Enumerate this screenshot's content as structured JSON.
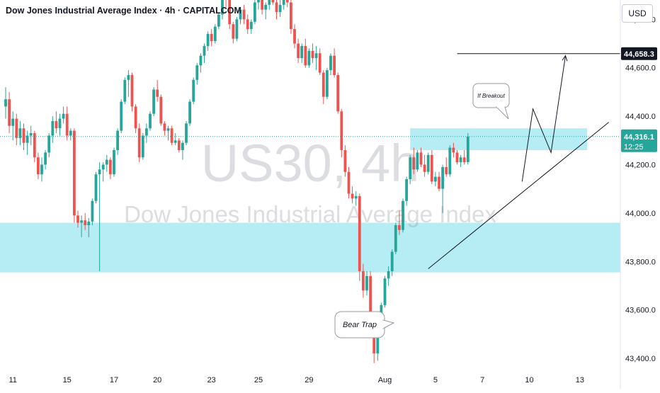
{
  "header": {
    "title": "Dow Jones Industrial Average Index · 4h · CAPITALCOM",
    "currency": "USD"
  },
  "watermark": {
    "symbol": "US30, 4h",
    "name": "Dow Jones Industrial Average Index"
  },
  "colors": {
    "up": "#26a69a",
    "down": "#ef5350",
    "zone": "#b2ebf2",
    "current_price_bg": "#26a69a",
    "target_bg": "#131722",
    "axis_text": "#131722"
  },
  "annotations": {
    "breakout_label": "If Breakout",
    "bear_trap_label": "Bear Trap"
  },
  "price_axis": {
    "current_price": "44,316.1",
    "countdown": "12:25",
    "target_price": "44,658.3"
  },
  "chart_data": {
    "type": "candlestick",
    "title": "Dow Jones Industrial Average Index · 4h · CAPITALCOM",
    "ylim": [
      43365,
      44880
    ],
    "y_ticks": [
      {
        "value": 43400,
        "label": "43,400.0"
      },
      {
        "value": 43600,
        "label": "43,600.0"
      },
      {
        "value": 43800,
        "label": "43,800.0"
      },
      {
        "value": 44000,
        "label": "44,000.0"
      },
      {
        "value": 44200,
        "label": "44,200.0"
      },
      {
        "value": 44400,
        "label": "44,400.0"
      },
      {
        "value": 44600,
        "label": "44,600.0"
      },
      {
        "value": 44800,
        "label": "44,800.0"
      }
    ],
    "x_ticks": [
      {
        "bar": 2,
        "label": "11"
      },
      {
        "bar": 17,
        "label": "15"
      },
      {
        "bar": 30,
        "label": "17"
      },
      {
        "bar": 42,
        "label": "20"
      },
      {
        "bar": 57,
        "label": "23"
      },
      {
        "bar": 70,
        "label": "25"
      },
      {
        "bar": 84,
        "label": "29"
      },
      {
        "bar": 105,
        "label": "Aug"
      },
      {
        "bar": 119,
        "label": "5"
      },
      {
        "bar": 132,
        "label": "7"
      },
      {
        "bar": 145,
        "label": "10"
      },
      {
        "bar": 159,
        "label": "13"
      }
    ],
    "candles": [
      [
        44440,
        44520,
        44390,
        44470
      ],
      [
        44470,
        44500,
        44330,
        44360
      ],
      [
        44360,
        44420,
        44300,
        44390
      ],
      [
        44390,
        44410,
        44280,
        44310
      ],
      [
        44310,
        44380,
        44280,
        44350
      ],
      [
        44350,
        44370,
        44260,
        44290
      ],
      [
        44290,
        44340,
        44240,
        44320
      ],
      [
        44320,
        44360,
        44280,
        44330
      ],
      [
        44330,
        44340,
        44210,
        44230
      ],
      [
        44230,
        44250,
        44140,
        44160
      ],
      [
        44160,
        44230,
        44130,
        44200
      ],
      [
        44200,
        44260,
        44180,
        44250
      ],
      [
        44250,
        44330,
        44230,
        44320
      ],
      [
        44320,
        44400,
        44290,
        44380
      ],
      [
        44380,
        44420,
        44330,
        44350
      ],
      [
        44350,
        44410,
        44320,
        44390
      ],
      [
        44390,
        44440,
        44370,
        44410
      ],
      [
        44410,
        44440,
        44300,
        44320
      ],
      [
        44320,
        44350,
        44300,
        44340
      ],
      [
        44340,
        44350,
        43960,
        43990
      ],
      [
        43990,
        44010,
        43940,
        43960
      ],
      [
        43960,
        43990,
        43900,
        43970
      ],
      [
        43970,
        44000,
        43930,
        43950
      ],
      [
        43950,
        43980,
        43900,
        43965
      ],
      [
        43965,
        44060,
        43950,
        44050
      ],
      [
        44050,
        44170,
        44040,
        44160
      ],
      [
        44160,
        44210,
        43760,
        44180
      ],
      [
        44180,
        44210,
        44130,
        44200
      ],
      [
        44200,
        44240,
        44170,
        44220
      ],
      [
        44220,
        44230,
        44140,
        44160
      ],
      [
        44160,
        44270,
        44150,
        44260
      ],
      [
        44260,
        44350,
        44240,
        44340
      ],
      [
        44340,
        44470,
        44330,
        44460
      ],
      [
        44460,
        44560,
        44450,
        44550
      ],
      [
        44550,
        44590,
        44480,
        44570
      ],
      [
        44570,
        44580,
        44420,
        44440
      ],
      [
        44440,
        44450,
        44330,
        44350
      ],
      [
        44350,
        44370,
        44210,
        44230
      ],
      [
        44230,
        44330,
        44220,
        44320
      ],
      [
        44320,
        44370,
        44290,
        44350
      ],
      [
        44350,
        44420,
        44340,
        44410
      ],
      [
        44410,
        44520,
        44400,
        44510
      ],
      [
        44510,
        44550,
        44460,
        44480
      ],
      [
        44480,
        44490,
        44360,
        44370
      ],
      [
        44370,
        44380,
        44320,
        44340
      ],
      [
        44340,
        44360,
        44300,
        44350
      ],
      [
        44350,
        44360,
        44280,
        44290
      ],
      [
        44290,
        44330,
        44280,
        44300
      ],
      [
        44300,
        44310,
        44250,
        44260
      ],
      [
        44260,
        44300,
        44220,
        44290
      ],
      [
        44290,
        44380,
        44280,
        44370
      ],
      [
        44370,
        44470,
        44360,
        44460
      ],
      [
        44460,
        44560,
        44450,
        44550
      ],
      [
        44550,
        44620,
        44530,
        44610
      ],
      [
        44610,
        44660,
        44580,
        44650
      ],
      [
        44650,
        44700,
        44620,
        44690
      ],
      [
        44690,
        44750,
        44670,
        44740
      ],
      [
        44740,
        44760,
        44690,
        44710
      ],
      [
        44710,
        44780,
        44700,
        44770
      ],
      [
        44770,
        44830,
        44760,
        44820
      ],
      [
        44820,
        44900,
        44800,
        44890
      ],
      [
        44890,
        44910,
        44850,
        44880
      ],
      [
        44880,
        44900,
        44760,
        44780
      ],
      [
        44780,
        44790,
        44700,
        44720
      ],
      [
        44720,
        44810,
        44710,
        44800
      ],
      [
        44800,
        44850,
        44780,
        44840
      ],
      [
        44840,
        44860,
        44780,
        44800
      ],
      [
        44800,
        44820,
        44740,
        44760
      ],
      [
        44760,
        44800,
        44740,
        44790
      ],
      [
        44790,
        44880,
        44780,
        44870
      ],
      [
        44870,
        44910,
        44840,
        44900
      ],
      [
        44900,
        44910,
        44820,
        44840
      ],
      [
        44840,
        44870,
        44800,
        44860
      ],
      [
        44860,
        44910,
        44840,
        44890
      ],
      [
        44890,
        44920,
        44860,
        44870
      ],
      [
        44870,
        44890,
        44800,
        44830
      ],
      [
        44830,
        44880,
        44810,
        44860
      ],
      [
        44860,
        44900,
        44840,
        44880
      ],
      [
        44880,
        44920,
        44850,
        44870
      ],
      [
        44870,
        44880,
        44740,
        44760
      ],
      [
        44760,
        44780,
        44680,
        44700
      ],
      [
        44700,
        44720,
        44620,
        44640
      ],
      [
        44640,
        44700,
        44620,
        44690
      ],
      [
        44690,
        44720,
        44600,
        44610
      ],
      [
        44610,
        44680,
        44600,
        44670
      ],
      [
        44670,
        44700,
        44620,
        44640
      ],
      [
        44640,
        44690,
        44590,
        44660
      ],
      [
        44660,
        44680,
        44570,
        44580
      ],
      [
        44580,
        44590,
        44450,
        44480
      ],
      [
        44480,
        44600,
        44470,
        44590
      ],
      [
        44590,
        44660,
        44570,
        44650
      ],
      [
        44650,
        44680,
        44560,
        44570
      ],
      [
        44570,
        44580,
        44410,
        44420
      ],
      [
        44420,
        44430,
        44230,
        44260
      ],
      [
        44260,
        44280,
        44150,
        44170
      ],
      [
        44170,
        44190,
        44060,
        44080
      ],
      [
        44080,
        44110,
        44040,
        44060
      ],
      [
        44060,
        44090,
        44030,
        44070
      ],
      [
        44070,
        44080,
        43720,
        43760
      ],
      [
        43760,
        43790,
        43650,
        43680
      ],
      [
        43680,
        43760,
        43660,
        43740
      ],
      [
        43740,
        43760,
        43550,
        43570
      ],
      [
        43570,
        43590,
        43380,
        43420
      ],
      [
        43420,
        43530,
        43390,
        43510
      ],
      [
        43510,
        43630,
        43500,
        43620
      ],
      [
        43620,
        43740,
        43610,
        43730
      ],
      [
        43730,
        43780,
        43700,
        43760
      ],
      [
        43760,
        43850,
        43740,
        43840
      ],
      [
        43840,
        43960,
        43830,
        43950
      ],
      [
        43950,
        44010,
        43910,
        43930
      ],
      [
        43930,
        44060,
        43920,
        44050
      ],
      [
        44050,
        44150,
        44030,
        44140
      ],
      [
        44140,
        44240,
        44120,
        44230
      ],
      [
        44230,
        44270,
        44160,
        44180
      ],
      [
        44180,
        44260,
        44170,
        44250
      ],
      [
        44250,
        44270,
        44190,
        44200
      ],
      [
        44200,
        44240,
        44150,
        44170
      ],
      [
        44170,
        44250,
        44160,
        44240
      ],
      [
        44240,
        44260,
        44120,
        44130
      ],
      [
        44130,
        44170,
        44110,
        44150
      ],
      [
        44150,
        44170,
        44090,
        44100
      ],
      [
        44100,
        44200,
        44000,
        44190
      ],
      [
        44190,
        44230,
        44150,
        44160
      ],
      [
        44160,
        44280,
        44150,
        44270
      ],
      [
        44270,
        44290,
        44230,
        44250
      ],
      [
        44250,
        44260,
        44200,
        44210
      ],
      [
        44210,
        44240,
        44190,
        44230
      ],
      [
        44230,
        44260,
        44200,
        44210
      ],
      [
        44210,
        44330,
        44200,
        44316
      ]
    ],
    "zones": [
      {
        "from": 43755,
        "to": 43960,
        "bar_start": -5,
        "bar_end": 176
      },
      {
        "from": 44260,
        "to": 44350,
        "bar_start": 112,
        "bar_end": 161
      }
    ],
    "lines": [
      {
        "kind": "trendline",
        "points": [
          [
            117,
            43770
          ],
          [
            167,
            44375
          ]
        ]
      },
      {
        "kind": "horizontal",
        "value": 44658.3,
        "bar_start": 125,
        "bar_end": 180
      },
      {
        "kind": "projection",
        "points": [
          [
            143,
            44130
          ],
          [
            146,
            44430
          ],
          [
            151,
            44250
          ],
          [
            155,
            44650
          ]
        ]
      }
    ],
    "current_price_value": 44316.1
  }
}
